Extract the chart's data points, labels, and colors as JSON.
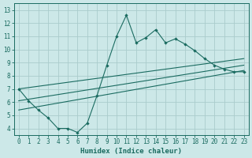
{
  "xlabel": "Humidex (Indice chaleur)",
  "bg_color": "#cce8e8",
  "line_color": "#1a6b60",
  "grid_color": "#b8d8d8",
  "xlim": [
    -0.5,
    23.5
  ],
  "ylim": [
    3.5,
    13.5
  ],
  "xticks": [
    0,
    1,
    2,
    3,
    4,
    5,
    6,
    7,
    8,
    9,
    10,
    11,
    12,
    13,
    14,
    15,
    16,
    17,
    18,
    19,
    20,
    21,
    22,
    23
  ],
  "yticks": [
    4,
    5,
    6,
    7,
    8,
    9,
    10,
    11,
    12,
    13
  ],
  "main_x": [
    0,
    1,
    2,
    3,
    4,
    5,
    6,
    7,
    8,
    9,
    10,
    11,
    12,
    13,
    14,
    15,
    16,
    17,
    18,
    19,
    20,
    21,
    22,
    23
  ],
  "main_y": [
    7.0,
    6.1,
    5.4,
    4.8,
    4.0,
    4.0,
    3.7,
    4.4,
    6.5,
    8.8,
    11.0,
    12.6,
    10.5,
    10.9,
    11.5,
    10.5,
    10.8,
    10.4,
    9.9,
    9.3,
    8.8,
    8.5,
    8.3,
    8.3
  ],
  "line1_x": [
    0,
    23
  ],
  "line1_y": [
    7.0,
    9.3
  ],
  "line2_x": [
    0,
    23
  ],
  "line2_y": [
    6.1,
    8.8
  ],
  "line3_x": [
    0,
    23
  ],
  "line3_y": [
    5.4,
    8.4
  ]
}
